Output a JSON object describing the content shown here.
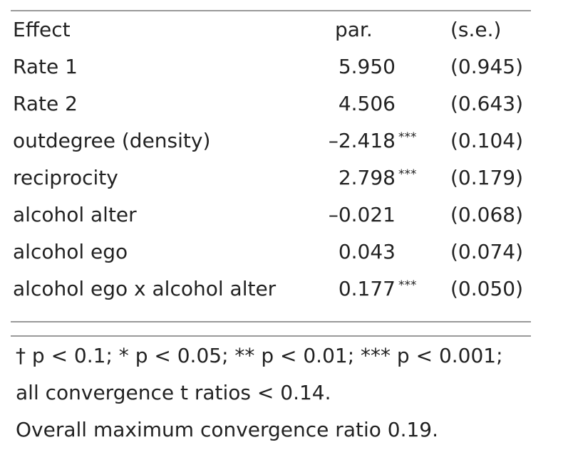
{
  "table": {
    "header": [
      "Effect",
      "par.",
      "(s.e.)"
    ],
    "rows": [
      {
        "effect": "Rate 1",
        "par": "5.950",
        "se": "(0.945)"
      },
      {
        "effect": "Rate 2",
        "par": "4.506",
        "se": "(0.643)"
      },
      {
        "effect": "outdegree (density)",
        "par": "–2.418",
        "sig": "***",
        "se": "(0.104)"
      },
      {
        "effect": "reciprocity",
        "par": "2.798",
        "sig": "***",
        "se": "(0.179)"
      },
      {
        "effect": "alcohol alter",
        "par": "–0.021",
        "se": "(0.068)"
      },
      {
        "effect": "alcohol ego",
        "par": "0.043",
        "se": "(0.074)"
      },
      {
        "effect": "alcohol ego x alcohol alter",
        "par": "0.177",
        "sig": "***",
        "se": "(0.050)"
      }
    ],
    "notes": [
      "† p < 0.1; * p < 0.05; ** p < 0.01; *** p < 0.001;",
      "all convergence t ratios < 0.14.",
      "Overall maximum convergence ratio 0.19."
    ]
  }
}
